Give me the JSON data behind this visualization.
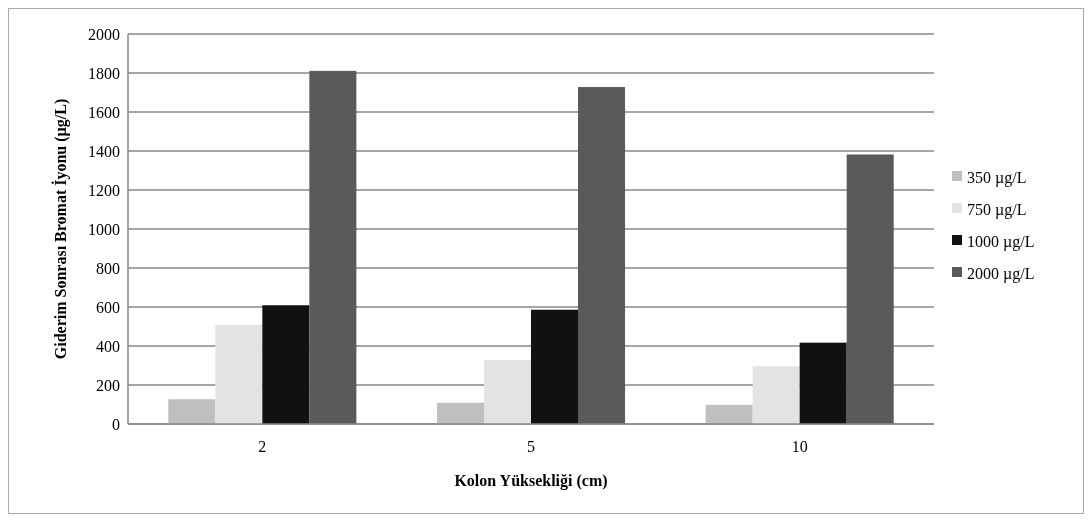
{
  "chart_data": {
    "type": "bar",
    "xlabel": "Kolon Yüksekliği (cm)",
    "ylabel": "Giderim Sonrası Bromat İyonu (µg/L)",
    "categories": [
      "2",
      "5",
      "10"
    ],
    "series": [
      {
        "name": "350 µg/L",
        "color": "#bfbfbf",
        "values": [
          127,
          109,
          98
        ]
      },
      {
        "name": "750 µg/L",
        "color": "#e3e3e3",
        "values": [
          509,
          328,
          296
        ]
      },
      {
        "name": "1000 µg/L",
        "color": "#111111",
        "values": [
          609,
          586,
          417
        ]
      },
      {
        "name": "2000 µg/L",
        "color": "#5a5a5a",
        "values": [
          1811,
          1728,
          1382
        ]
      }
    ],
    "ylim": [
      0,
      2000
    ],
    "yticks": [
      0,
      200,
      400,
      600,
      800,
      1000,
      1200,
      1400,
      1600,
      1800,
      2000
    ],
    "grid": "y",
    "legend": "right"
  }
}
